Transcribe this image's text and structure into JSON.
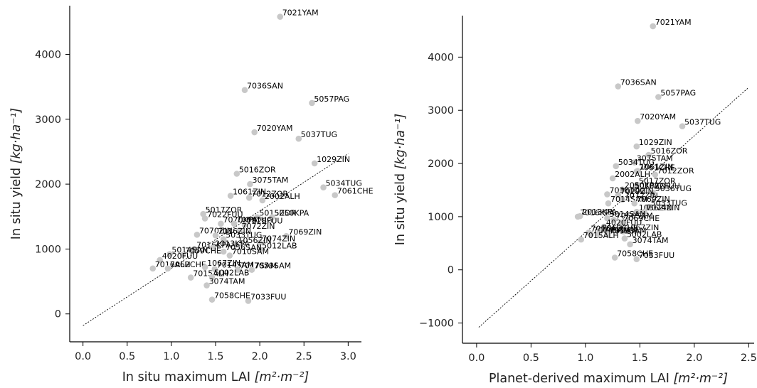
{
  "chart_data": [
    {
      "type": "scatter",
      "xlabel_text": "In situ maximum LAI ",
      "xlabel_unit": "[m²·m⁻²]",
      "ylabel_text": "In situ yield ",
      "ylabel_unit": "[kg·ha⁻¹]",
      "xlim": [
        -0.15,
        3.15
      ],
      "ylim": [
        -430,
        4750
      ],
      "xticks": [
        0.0,
        0.5,
        1.0,
        1.5,
        2.0,
        2.5,
        3.0
      ],
      "xtick_labels": [
        "0.0",
        "0.5",
        "1.0",
        "1.5",
        "2.0",
        "2.5",
        "3.0"
      ],
      "yticks": [
        0,
        1000,
        2000,
        3000,
        4000
      ],
      "ytick_labels": [
        "0",
        "1000",
        "2000",
        "3000",
        "4000"
      ],
      "fit_line": {
        "x": [
          0.0,
          3.0
        ],
        "y": [
          -180,
          2470
        ]
      },
      "points": [
        {
          "label": "7021YAM",
          "x": 2.23,
          "y": 4580
        },
        {
          "label": "7036SAN",
          "x": 1.83,
          "y": 3450
        },
        {
          "label": "5057PAG",
          "x": 2.59,
          "y": 3250
        },
        {
          "label": "7020YAM",
          "x": 1.94,
          "y": 2800
        },
        {
          "label": "5037TUG",
          "x": 2.44,
          "y": 2700
        },
        {
          "label": "1029ZIN",
          "x": 2.62,
          "y": 2320
        },
        {
          "label": "5016ZOR",
          "x": 1.74,
          "y": 2160
        },
        {
          "label": "3075TAM",
          "x": 1.89,
          "y": 2000
        },
        {
          "label": "5034TUG",
          "x": 2.72,
          "y": 1950
        },
        {
          "label": "1061ZIN",
          "x": 1.67,
          "y": 1820
        },
        {
          "label": "7061CHE",
          "x": 2.85,
          "y": 1830
        },
        {
          "label": "7012ZOR",
          "x": 1.88,
          "y": 1790
        },
        {
          "label": "2002ALH",
          "x": 2.03,
          "y": 1750
        },
        {
          "label": "5017ZOR",
          "x": 1.36,
          "y": 1540
        },
        {
          "label": "5015ZOR",
          "x": 1.97,
          "y": 1490
        },
        {
          "label": "5050KPA",
          "x": 2.14,
          "y": 1490
        },
        {
          "label": "7022FUU",
          "x": 1.38,
          "y": 1470
        },
        {
          "label": "7070KPA",
          "x": 1.56,
          "y": 1390
        },
        {
          "label": "7065TUG",
          "x": 1.71,
          "y": 1390
        },
        {
          "label": "7028FUU",
          "x": 1.83,
          "y": 1370
        },
        {
          "label": "7072ZIN",
          "x": 1.77,
          "y": 1290
        },
        {
          "label": "7070ZIN",
          "x": 1.29,
          "y": 1220
        },
        {
          "label": "7016ZIN",
          "x": 1.5,
          "y": 1210
        },
        {
          "label": "7069ZIN",
          "x": 2.3,
          "y": 1200
        },
        {
          "label": "5033TUG",
          "x": 1.59,
          "y": 1150
        },
        {
          "label": "7074ZIN",
          "x": 2.0,
          "y": 1100
        },
        {
          "label": "1056ZIN",
          "x": 1.73,
          "y": 1070
        },
        {
          "label": "7016KPA",
          "x": 1.26,
          "y": 1000
        },
        {
          "label": "2013KPA",
          "x": 1.47,
          "y": 1020
        },
        {
          "label": "5012LAB",
          "x": 2.0,
          "y": 990
        },
        {
          "label": "7056SAN",
          "x": 1.59,
          "y": 960
        },
        {
          "label": "5014SAN",
          "x": 0.98,
          "y": 920
        },
        {
          "label": "7059CHE",
          "x": 1.13,
          "y": 910
        },
        {
          "label": "7010SAM",
          "x": 1.66,
          "y": 900
        },
        {
          "label": "4020FUU",
          "x": 0.87,
          "y": 830
        },
        {
          "label": "7016ALH",
          "x": 0.79,
          "y": 700
        },
        {
          "label": "7062CHE",
          "x": 0.96,
          "y": 700
        },
        {
          "label": "1067ZIN",
          "x": 1.38,
          "y": 720
        },
        {
          "label": "7014SAM",
          "x": 1.49,
          "y": 690
        },
        {
          "label": "7017SAM",
          "x": 1.75,
          "y": 680
        },
        {
          "label": "7059SAM",
          "x": 1.91,
          "y": 680
        },
        {
          "label": "7015ALH",
          "x": 1.22,
          "y": 560
        },
        {
          "label": "5002LAB",
          "x": 1.46,
          "y": 570
        },
        {
          "label": "3074TAM",
          "x": 1.4,
          "y": 440
        },
        {
          "label": "7058CHE",
          "x": 1.46,
          "y": 220
        },
        {
          "label": "7033FUU",
          "x": 1.87,
          "y": 200
        }
      ]
    },
    {
      "type": "scatter",
      "xlabel_text": "Planet-derived maximum LAI ",
      "xlabel_unit": "[m²·m⁻²]",
      "ylabel_text": "In situ yield ",
      "ylabel_unit": "[kg·ha⁻¹]",
      "xlim": [
        -0.13,
        2.55
      ],
      "ylim": [
        -1380,
        4780
      ],
      "xticks": [
        0.0,
        0.5,
        1.0,
        1.5,
        2.0,
        2.5
      ],
      "xtick_labels": [
        "0.0",
        "0.5",
        "1.0",
        "1.5",
        "2.0",
        "2.5"
      ],
      "yticks": [
        -1000,
        0,
        1000,
        2000,
        3000,
        4000
      ],
      "ytick_labels": [
        "−1000",
        "0",
        "1000",
        "2000",
        "3000",
        "4000"
      ],
      "fit_line": {
        "x": [
          0.02,
          2.5
        ],
        "y": [
          -1080,
          3430
        ]
      },
      "points": [
        {
          "label": "7021YAM",
          "x": 1.62,
          "y": 4580
        },
        {
          "label": "7036SAN",
          "x": 1.3,
          "y": 3450
        },
        {
          "label": "5057PAG",
          "x": 1.67,
          "y": 3250
        },
        {
          "label": "7020YAM",
          "x": 1.48,
          "y": 2800
        },
        {
          "label": "5037TUG",
          "x": 1.89,
          "y": 2700
        },
        {
          "label": "1029ZIN",
          "x": 1.47,
          "y": 2320
        },
        {
          "label": "5016ZOR",
          "x": 1.58,
          "y": 2160
        },
        {
          "label": "3075TAM",
          "x": 1.45,
          "y": 2020
        },
        {
          "label": "5034TUG",
          "x": 1.28,
          "y": 1950
        },
        {
          "label": "7061CHE",
          "x": 1.47,
          "y": 1850
        },
        {
          "label": "1061ZIN",
          "x": 1.48,
          "y": 1860
        },
        {
          "label": "7012ZOR",
          "x": 1.64,
          "y": 1790
        },
        {
          "label": "2002ALH",
          "x": 1.25,
          "y": 1720
        },
        {
          "label": "5017ZOR",
          "x": 1.47,
          "y": 1590
        },
        {
          "label": "2050KPA",
          "x": 1.34,
          "y": 1510
        },
        {
          "label": "5015ZOR",
          "x": 1.43,
          "y": 1500
        },
        {
          "label": "7022FUU",
          "x": 1.52,
          "y": 1500
        },
        {
          "label": "5036TUG",
          "x": 1.62,
          "y": 1450
        },
        {
          "label": "7036TUG",
          "x": 1.2,
          "y": 1420
        },
        {
          "label": "7029ZIN",
          "x": 1.3,
          "y": 1400
        },
        {
          "label": "7072ZIN",
          "x": 1.34,
          "y": 1320
        },
        {
          "label": "7014SAM",
          "x": 1.21,
          "y": 1250
        },
        {
          "label": "7069ZIN",
          "x": 1.45,
          "y": 1250
        },
        {
          "label": "5033TUG",
          "x": 1.58,
          "y": 1180
        },
        {
          "label": "1056ZIN",
          "x": 1.47,
          "y": 1090
        },
        {
          "label": "7074ZIN",
          "x": 1.54,
          "y": 1090
        },
        {
          "label": "7016KPA",
          "x": 0.93,
          "y": 1000
        },
        {
          "label": "2013KPA",
          "x": 0.95,
          "y": 1010
        },
        {
          "label": "5014SAN",
          "x": 1.2,
          "y": 970
        },
        {
          "label": "7056SAM",
          "x": 1.26,
          "y": 940
        },
        {
          "label": "7069CHE",
          "x": 1.33,
          "y": 890
        },
        {
          "label": "4020FUU",
          "x": 1.17,
          "y": 810
        },
        {
          "label": "7016ALH",
          "x": 1.03,
          "y": 700
        },
        {
          "label": "7062CHE",
          "x": 1.13,
          "y": 710
        },
        {
          "label": "1067ZIN",
          "x": 1.35,
          "y": 720
        },
        {
          "label": "7014SAM",
          "x": 1.05,
          "y": 670
        },
        {
          "label": "7017SAM",
          "x": 1.12,
          "y": 670
        },
        {
          "label": "7059SAM",
          "x": 1.2,
          "y": 660
        },
        {
          "label": "7015ALH",
          "x": 0.96,
          "y": 570
        },
        {
          "label": "5002LAB",
          "x": 1.36,
          "y": 590
        },
        {
          "label": "3074TAM",
          "x": 1.41,
          "y": 480
        },
        {
          "label": "7058CHE",
          "x": 1.27,
          "y": 230
        },
        {
          "label": "7033FUU",
          "x": 1.47,
          "y": 200
        }
      ]
    }
  ]
}
